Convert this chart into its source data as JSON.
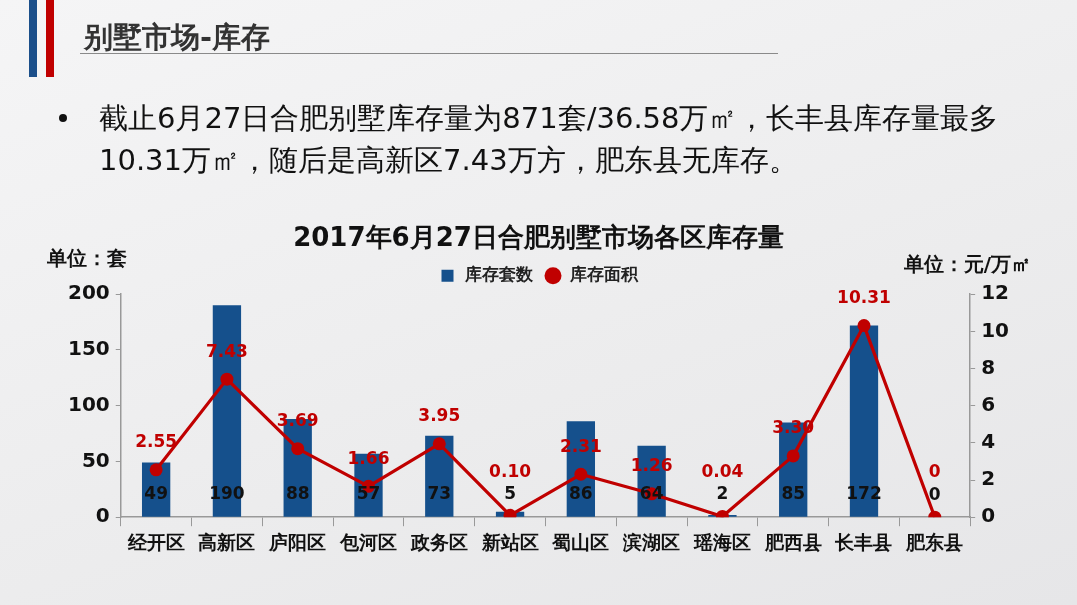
{
  "chart_data": {
    "type": "bar",
    "title": "2017年6月27日合肥别墅市场各区库存量",
    "annotations": [
      "别墅市场-库存",
      "截止6月27日合肥别墅库存量为871套/36.58万㎡，长丰县库存量最多10.31万㎡，随后是高新区7.43万方，肥东县无库存。"
    ],
    "ylabel": "单位：套",
    "y2label": "单位：元/万㎡",
    "categories": [
      "经开区",
      "高新区",
      "庐阳区",
      "包河区",
      "政务区",
      "新站区",
      "蜀山区",
      "滨湖区",
      "瑶海区",
      "肥西县",
      "长丰县",
      "肥东县"
    ],
    "series": [
      {
        "name": "库存套数",
        "color": "#15508c",
        "values": [
          49,
          190,
          88,
          57,
          73,
          5,
          86,
          64,
          2,
          85,
          172,
          0
        ],
        "value_labels": [
          "49",
          "190",
          "88",
          "57",
          "73",
          "5",
          "86",
          "64",
          "2",
          "85",
          "172",
          "0"
        ]
      },
      {
        "name": "库存面积",
        "type": "line",
        "axis": "y2",
        "color": "#c00000",
        "values": [
          2.55,
          7.43,
          3.69,
          1.66,
          3.95,
          0.1,
          2.31,
          1.26,
          0.04,
          3.3,
          10.31,
          0
        ],
        "value_labels": [
          "2.55",
          "7.43",
          "3.69",
          "1.66",
          "3.95",
          "0.10",
          "2.31",
          "1.26",
          "0.04",
          "3.30",
          "10.31",
          "0"
        ]
      }
    ],
    "ylim": [
      0,
      200
    ],
    "yticks": [
      0,
      50,
      100,
      150,
      200
    ],
    "y2lim": [
      0,
      12
    ],
    "y2ticks": [
      0,
      2,
      4,
      6,
      8,
      10,
      12
    ],
    "legend": "top",
    "marker": "circle",
    "line_style": "solid"
  }
}
